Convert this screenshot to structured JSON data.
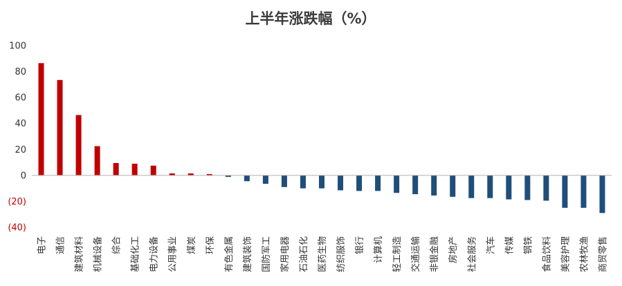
{
  "chart_data": {
    "type": "bar",
    "title": "上半年涨跌幅（%）",
    "xlabel": "",
    "ylabel": "",
    "ylim": [
      -40,
      100
    ],
    "yticks": [
      100,
      80,
      60,
      40,
      20,
      0,
      -20,
      -40
    ],
    "ytick_labels": [
      "100",
      "80",
      "60",
      "40",
      "20",
      "0",
      "(20)",
      "(40)"
    ],
    "grid": false,
    "legend": "none",
    "colors": {
      "positive": "#c00000",
      "negative": "#1f4e79",
      "negative_label": "#c00000",
      "axis": "#b0b0b0"
    },
    "categories": [
      "电子",
      "通信",
      "建筑材料",
      "机械设备",
      "综合",
      "基础化工",
      "电力设备",
      "公用事业",
      "煤炭",
      "环保",
      "有色金属",
      "建筑装饰",
      "国防军工",
      "家用电器",
      "石油石化",
      "医药生物",
      "纺织服饰",
      "银行",
      "计算机",
      "轻工制造",
      "交通运输",
      "非银金融",
      "房地产",
      "社会服务",
      "汽车",
      "传媒",
      "钢铁",
      "食品饮料",
      "美容护理",
      "农林牧渔",
      "商贸零售"
    ],
    "values": [
      86.5,
      73.5,
      46.5,
      22.5,
      9.5,
      9,
      7.5,
      1.5,
      1.5,
      1,
      -1.2,
      -4.5,
      -6.5,
      -9,
      -10,
      -10,
      -11.5,
      -12,
      -12,
      -13.5,
      -14.5,
      -15.5,
      -16.5,
      -17.5,
      -17.5,
      -18.5,
      -19,
      -19.5,
      -25,
      -25,
      -29
    ]
  }
}
